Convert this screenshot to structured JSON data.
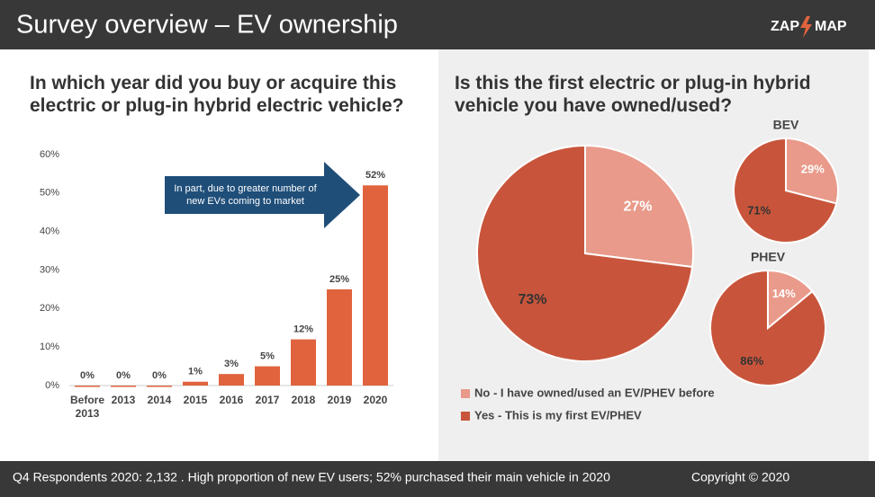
{
  "header": {
    "title": "Survey overview – EV ownership",
    "logo_left": "ZAP",
    "logo_right": "MAP"
  },
  "footer": {
    "note": "Q4 Respondents 2020: 2,132 . High proportion of new EV users; 52% purchased their main vehicle in 2020",
    "copyright": "Copyright © 2020"
  },
  "chart_data": [
    {
      "type": "bar",
      "title": "In which year did you buy or acquire this electric or plug-in hybrid electric vehicle?",
      "categories": [
        "Before 2013",
        "2013",
        "2014",
        "2015",
        "2016",
        "2017",
        "2018",
        "2019",
        "2020"
      ],
      "values": [
        0,
        0,
        0,
        1,
        3,
        5,
        12,
        25,
        52
      ],
      "value_labels": [
        "0%",
        "0%",
        "0%",
        "1%",
        "3%",
        "5%",
        "12%",
        "25%",
        "52%"
      ],
      "color": "#e0633e",
      "ylim": [
        0,
        60
      ],
      "yticks": [
        {
          "value": 0,
          "label": "0%"
        },
        {
          "value": 10,
          "label": "10%"
        },
        {
          "value": 20,
          "label": "20%"
        },
        {
          "value": 30,
          "label": "30%"
        },
        {
          "value": 40,
          "label": "40%"
        },
        {
          "value": 50,
          "label": "50%"
        },
        {
          "value": 60,
          "label": "60%"
        }
      ],
      "grid": false,
      "annotation": "In part, due to greater number of new EVs coming to market"
    },
    {
      "type": "pie",
      "title": "Is this the first electric or plug-in hybrid vehicle you have owned/used?",
      "categories": [
        "No - I have owned/used an EV/PHEV before",
        "Yes - This is my first EV/PHEV"
      ],
      "values": [
        27,
        73
      ],
      "value_labels": [
        "27%",
        "73%"
      ],
      "colors": [
        "#e99a8a",
        "#c8553b"
      ]
    },
    {
      "type": "pie",
      "title": "BEV",
      "values": [
        29,
        71
      ],
      "value_labels": [
        "29%",
        "71%"
      ],
      "colors": [
        "#e99a8a",
        "#c8553b"
      ]
    },
    {
      "type": "pie",
      "title": "PHEV",
      "values": [
        14,
        86
      ],
      "value_labels": [
        "14%",
        "86%"
      ],
      "colors": [
        "#e99a8a",
        "#c8553b"
      ]
    }
  ]
}
